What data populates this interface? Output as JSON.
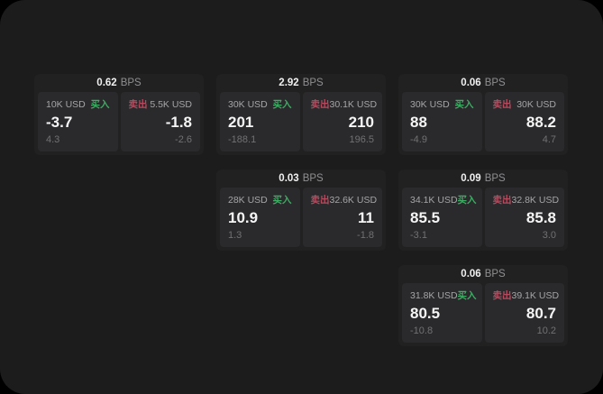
{
  "page": {
    "outer_background": "#000000",
    "surface_background": "#1c1c1d"
  },
  "labels": {
    "bps": "BPS",
    "buy": "买入",
    "sell": "卖出"
  },
  "colors": {
    "buy": "#3eac63",
    "sell": "#b84a5e",
    "value_text": "#f5f5f6",
    "muted_text": "#a5a5a7",
    "sub_text": "#717173"
  },
  "cards": [
    {
      "bps": "0.62",
      "buy": {
        "amount": "10K USD",
        "value": "-3.7",
        "sub": "4.3"
      },
      "sell": {
        "amount": "5.5K USD",
        "value": "-1.8",
        "sub": "-2.6"
      },
      "grid": {
        "row": 1,
        "col": 1
      }
    },
    {
      "bps": "2.92",
      "buy": {
        "amount": "30K USD",
        "value": "201",
        "sub": "-188.1"
      },
      "sell": {
        "amount": "30.1K USD",
        "value": "210",
        "sub": "196.5"
      },
      "grid": {
        "row": 1,
        "col": 2
      }
    },
    {
      "bps": "0.06",
      "buy": {
        "amount": "30K USD",
        "value": "88",
        "sub": "-4.9"
      },
      "sell": {
        "amount": "30K USD",
        "value": "88.2",
        "sub": "4.7"
      },
      "grid": {
        "row": 1,
        "col": 3
      }
    },
    {
      "bps": "0.03",
      "buy": {
        "amount": "28K USD",
        "value": "10.9",
        "sub": "1.3"
      },
      "sell": {
        "amount": "32.6K USD",
        "value": "11",
        "sub": "-1.8"
      },
      "grid": {
        "row": 2,
        "col": 2
      }
    },
    {
      "bps": "0.09",
      "buy": {
        "amount": "34.1K USD",
        "value": "85.5",
        "sub": "-3.1"
      },
      "sell": {
        "amount": "32.8K USD",
        "value": "85.8",
        "sub": "3.0"
      },
      "grid": {
        "row": 2,
        "col": 3
      }
    },
    {
      "bps": "0.06",
      "buy": {
        "amount": "31.8K USD",
        "value": "80.5",
        "sub": "-10.8"
      },
      "sell": {
        "amount": "39.1K USD",
        "value": "80.7",
        "sub": "10.2"
      },
      "grid": {
        "row": 3,
        "col": 3
      }
    }
  ]
}
